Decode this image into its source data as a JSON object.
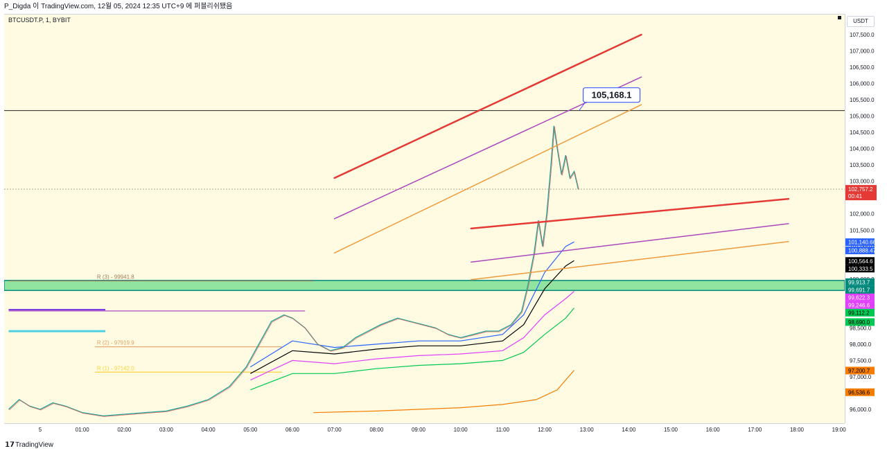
{
  "header": {
    "caption": "P_Digda 이 TradingView.com, 12월 05, 2024 12:35 UTC+9 에 퍼블리쉬됐음"
  },
  "chart_data": {
    "type": "line",
    "symbol": "BTCUSDT.P, 1, BYBIT",
    "currency": "USDT",
    "y_axis": {
      "range": [
        95600,
        107900
      ],
      "ticks": [
        96000,
        96500,
        97000,
        97500,
        98000,
        98500,
        99000,
        99500,
        100000,
        100500,
        101000,
        101500,
        102000,
        102500,
        103000,
        103500,
        104000,
        104500,
        105000,
        105500,
        106000,
        106500,
        107000,
        107500
      ],
      "tick_labels": [
        "96,000.0",
        "96,500.0",
        "97,000.0",
        "97,500.0",
        "98,000.0",
        "98,500.0",
        "99,000.0",
        "99,500.0",
        "100,000.0",
        "100,500.0",
        "101,000.0",
        "101,500.0",
        "102,000.0",
        "102,500.0",
        "103,000.0",
        "103,500.0",
        "104,000.0",
        "104,500.0",
        "105,000.0",
        "105,500.0",
        "106,000.0",
        "106,500.0",
        "107,000.0",
        "107,500.0"
      ]
    },
    "x_axis": {
      "range_hours": [
        23.25,
        19.05
      ],
      "ticks": [
        {
          "t": 24.0,
          "label": "5"
        },
        {
          "t": 25.0,
          "label": "01:00"
        },
        {
          "t": 26.0,
          "label": "02:00"
        },
        {
          "t": 27.0,
          "label": "03:00"
        },
        {
          "t": 28.0,
          "label": "04:00"
        },
        {
          "t": 29.0,
          "label": "05:00"
        },
        {
          "t": 30.0,
          "label": "06:00"
        },
        {
          "t": 31.0,
          "label": "07:00"
        },
        {
          "t": 32.0,
          "label": "08:00"
        },
        {
          "t": 33.0,
          "label": "09:00"
        },
        {
          "t": 34.0,
          "label": "10:00"
        },
        {
          "t": 35.0,
          "label": "11:00"
        },
        {
          "t": 36.0,
          "label": "12:00"
        },
        {
          "t": 37.0,
          "label": "13:00"
        },
        {
          "t": 38.0,
          "label": "14:00"
        },
        {
          "t": 39.0,
          "label": "15:00"
        },
        {
          "t": 40.0,
          "label": "16:00"
        },
        {
          "t": 41.0,
          "label": "17:00"
        },
        {
          "t": 42.0,
          "label": "18:00"
        },
        {
          "t": 43.0,
          "label": "19:00"
        }
      ]
    },
    "price_path": [
      {
        "t": 23.25,
        "p": 96000
      },
      {
        "t": 23.5,
        "p": 96300
      },
      {
        "t": 23.75,
        "p": 96100
      },
      {
        "t": 24.0,
        "p": 96000
      },
      {
        "t": 24.3,
        "p": 96200
      },
      {
        "t": 24.6,
        "p": 96100
      },
      {
        "t": 25.0,
        "p": 95900
      },
      {
        "t": 25.5,
        "p": 95800
      },
      {
        "t": 26.0,
        "p": 95850
      },
      {
        "t": 26.5,
        "p": 95900
      },
      {
        "t": 27.0,
        "p": 95950
      },
      {
        "t": 27.5,
        "p": 96100
      },
      {
        "t": 28.0,
        "p": 96300
      },
      {
        "t": 28.5,
        "p": 96700
      },
      {
        "t": 28.9,
        "p": 97300
      },
      {
        "t": 29.2,
        "p": 98000
      },
      {
        "t": 29.5,
        "p": 98700
      },
      {
        "t": 29.8,
        "p": 98900
      },
      {
        "t": 30.0,
        "p": 98800
      },
      {
        "t": 30.3,
        "p": 98500
      },
      {
        "t": 30.6,
        "p": 98000
      },
      {
        "t": 30.9,
        "p": 97800
      },
      {
        "t": 31.2,
        "p": 97900
      },
      {
        "t": 31.5,
        "p": 98200
      },
      {
        "t": 31.8,
        "p": 98400
      },
      {
        "t": 32.1,
        "p": 98600
      },
      {
        "t": 32.5,
        "p": 98800
      },
      {
        "t": 32.8,
        "p": 98700
      },
      {
        "t": 33.1,
        "p": 98600
      },
      {
        "t": 33.4,
        "p": 98500
      },
      {
        "t": 33.7,
        "p": 98300
      },
      {
        "t": 34.0,
        "p": 98200
      },
      {
        "t": 34.3,
        "p": 98300
      },
      {
        "t": 34.6,
        "p": 98400
      },
      {
        "t": 34.9,
        "p": 98400
      },
      {
        "t": 35.2,
        "p": 98600
      },
      {
        "t": 35.45,
        "p": 99000
      },
      {
        "t": 35.6,
        "p": 99800
      },
      {
        "t": 35.75,
        "p": 100800
      },
      {
        "t": 35.85,
        "p": 101800
      },
      {
        "t": 35.95,
        "p": 101000
      },
      {
        "t": 36.05,
        "p": 102000
      },
      {
        "t": 36.15,
        "p": 103500
      },
      {
        "t": 36.22,
        "p": 104700
      },
      {
        "t": 36.3,
        "p": 104000
      },
      {
        "t": 36.4,
        "p": 103200
      },
      {
        "t": 36.5,
        "p": 103800
      },
      {
        "t": 36.6,
        "p": 103100
      },
      {
        "t": 36.7,
        "p": 103300
      },
      {
        "t": 36.8,
        "p": 102757.2
      }
    ],
    "moving_averages": [
      {
        "color": "#2962ff",
        "points": [
          {
            "t": 29.0,
            "p": 97300
          },
          {
            "t": 30.0,
            "p": 98100
          },
          {
            "t": 31.0,
            "p": 97900
          },
          {
            "t": 32.0,
            "p": 98000
          },
          {
            "t": 33.0,
            "p": 98100
          },
          {
            "t": 34.0,
            "p": 98100
          },
          {
            "t": 35.0,
            "p": 98300
          },
          {
            "t": 35.5,
            "p": 98900
          },
          {
            "t": 36.0,
            "p": 100200
          },
          {
            "t": 36.5,
            "p": 101000
          },
          {
            "t": 36.7,
            "p": 101140.66
          }
        ]
      },
      {
        "color": "#000000",
        "points": [
          {
            "t": 29.0,
            "p": 97100
          },
          {
            "t": 30.0,
            "p": 97800
          },
          {
            "t": 31.0,
            "p": 97700
          },
          {
            "t": 32.0,
            "p": 97850
          },
          {
            "t": 33.0,
            "p": 97950
          },
          {
            "t": 34.0,
            "p": 97950
          },
          {
            "t": 35.0,
            "p": 98100
          },
          {
            "t": 35.5,
            "p": 98600
          },
          {
            "t": 36.0,
            "p": 99700
          },
          {
            "t": 36.5,
            "p": 100400
          },
          {
            "t": 36.7,
            "p": 100564.6
          }
        ]
      },
      {
        "color": "#e040fb",
        "points": [
          {
            "t": 29.0,
            "p": 96900
          },
          {
            "t": 30.0,
            "p": 97500
          },
          {
            "t": 31.0,
            "p": 97400
          },
          {
            "t": 32.0,
            "p": 97550
          },
          {
            "t": 33.0,
            "p": 97650
          },
          {
            "t": 34.0,
            "p": 97700
          },
          {
            "t": 35.0,
            "p": 97800
          },
          {
            "t": 35.5,
            "p": 98200
          },
          {
            "t": 36.0,
            "p": 98900
          },
          {
            "t": 36.5,
            "p": 99400
          },
          {
            "t": 36.7,
            "p": 99622.3
          }
        ]
      },
      {
        "color": "#00c853",
        "points": [
          {
            "t": 29.0,
            "p": 96600
          },
          {
            "t": 30.0,
            "p": 97100
          },
          {
            "t": 31.0,
            "p": 97100
          },
          {
            "t": 32.0,
            "p": 97250
          },
          {
            "t": 33.0,
            "p": 97350
          },
          {
            "t": 34.0,
            "p": 97400
          },
          {
            "t": 35.0,
            "p": 97500
          },
          {
            "t": 35.5,
            "p": 97750
          },
          {
            "t": 36.0,
            "p": 98300
          },
          {
            "t": 36.5,
            "p": 98800
          },
          {
            "t": 36.7,
            "p": 99112.2
          }
        ]
      },
      {
        "color": "#f57c00",
        "points": [
          {
            "t": 30.5,
            "p": 95900
          },
          {
            "t": 32.0,
            "p": 95950
          },
          {
            "t": 34.0,
            "p": 96050
          },
          {
            "t": 35.0,
            "p": 96150
          },
          {
            "t": 35.8,
            "p": 96300
          },
          {
            "t": 36.3,
            "p": 96600
          },
          {
            "t": 36.7,
            "p": 97200.7
          }
        ]
      }
    ],
    "trend_lines": [
      {
        "color": "#e53935",
        "width": 2.5,
        "from": {
          "t": 31.0,
          "p": 103100
        },
        "to": {
          "t": 38.3,
          "p": 107500
        }
      },
      {
        "color": "#ab47bc",
        "width": 1.5,
        "from": {
          "t": 31.0,
          "p": 101850
        },
        "to": {
          "t": 38.3,
          "p": 106200
        }
      },
      {
        "color": "#ef9a3a",
        "width": 1.5,
        "from": {
          "t": 31.0,
          "p": 100800
        },
        "to": {
          "t": 38.3,
          "p": 105350
        }
      },
      {
        "color": "#e53935",
        "width": 2.5,
        "from": {
          "t": 34.25,
          "p": 101550
        },
        "to": {
          "t": 41.8,
          "p": 102460
        }
      },
      {
        "color": "#ab47bc",
        "width": 1.5,
        "from": {
          "t": 34.25,
          "p": 100520
        },
        "to": {
          "t": 41.8,
          "p": 101700
        }
      },
      {
        "color": "#ef9a3a",
        "width": 1.5,
        "from": {
          "t": 34.25,
          "p": 99980
        },
        "to": {
          "t": 41.8,
          "p": 101150
        }
      }
    ],
    "horizontal_lines": [
      {
        "p": 105168.1,
        "color": "#000000"
      },
      {
        "p": 102757.2,
        "color": "#b0a090",
        "dotted": true
      }
    ],
    "zone": {
      "from": 99691.7,
      "to": 99913.7,
      "color": "#90e4a0",
      "border": "#00897b"
    },
    "levels": [
      {
        "label": "R (3) - 99941.8",
        "p": 99941.8,
        "t0": 23.25,
        "t1": 30.5,
        "color": "#9e7b5a"
      },
      {
        "label": "R (2) - 97919.9",
        "p": 97919.9,
        "t0": 25.3,
        "t1": 29.75,
        "color": "#e0a060"
      },
      {
        "label": "R (1) - 97142.0",
        "p": 97142.0,
        "t0": 25.3,
        "t1": 29.75,
        "color": "#f9d33a"
      }
    ],
    "left_segments": [
      {
        "p": 99050,
        "t0": 23.25,
        "t1": 25.55,
        "color": "#7b3fe4",
        "width": 3
      },
      {
        "p": 98400,
        "t0": 23.25,
        "t1": 25.55,
        "color": "#4dd0e1",
        "width": 3
      },
      {
        "p": 99020,
        "t0": 23.25,
        "t1": 30.3,
        "color": "#ba68c8",
        "width": 1.5
      }
    ],
    "callout": {
      "text": "105,168.1",
      "t": 36.85,
      "p": 105168.1
    },
    "current_price": {
      "value": "102,757.2",
      "countdown": "00:41",
      "color": "#e53935"
    },
    "price_labels": [
      {
        "text": "101,140.66",
        "p": 101140.66,
        "bg": "#2962ff",
        "fg": "#ffffff"
      },
      {
        "text": "100,888.47",
        "p": 100888.47,
        "bg": "#2962ff",
        "fg": "#ffffff"
      },
      {
        "text": "100,564.6",
        "p": 100564.6,
        "bg": "#000000",
        "fg": "#ffffff"
      },
      {
        "text": "100,333.5",
        "p": 100333.5,
        "bg": "#000000",
        "fg": "#ffffff"
      },
      {
        "text": "99,913.7",
        "p": 99913.7,
        "bg": "#00897b",
        "fg": "#ffffff"
      },
      {
        "text": "99,691.7",
        "p": 99691.7,
        "bg": "#00897b",
        "fg": "#ffffff"
      },
      {
        "text": "99,622.3",
        "p": 99622.3,
        "bg": "#e040fb",
        "fg": "#ffffff"
      },
      {
        "text": "99,246.6",
        "p": 99246.6,
        "bg": "#e040fb",
        "fg": "#ffffff"
      },
      {
        "text": "99,112.2",
        "p": 99112.2,
        "bg": "#00c853",
        "fg": "#000000"
      },
      {
        "text": "98,690.0",
        "p": 98690.0,
        "bg": "#00c853",
        "fg": "#000000"
      },
      {
        "text": "97,200.7",
        "p": 97200.7,
        "bg": "#f57c00",
        "fg": "#000000"
      },
      {
        "text": "96,536.6",
        "p": 96536.6,
        "bg": "#f57c00",
        "fg": "#000000"
      }
    ]
  },
  "footer": {
    "brand": "TradingView",
    "logo": "tradingview-logo"
  }
}
